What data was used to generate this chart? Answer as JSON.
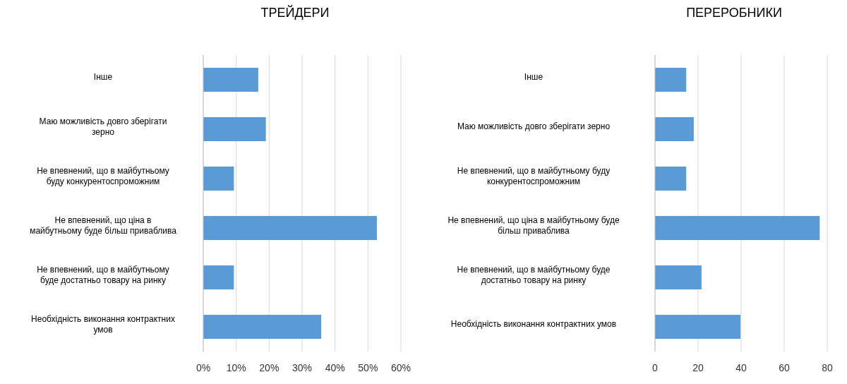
{
  "chart_data": [
    {
      "type": "bar",
      "orientation": "horizontal",
      "title": "ТРЕЙДЕРИ",
      "categories": [
        "Інше",
        "Маю можливість  довго зберігати зерно",
        "Не впевнений, що в майбутньому буду конкурентоспроможним",
        "Не впевнений, що ціна в майбутньому буде більш приваблива",
        "Не впевнений, що в майбутньому буде достатньо товару на ринку",
        "Необхідність виконання контрактних умов"
      ],
      "values": [
        16.7,
        19,
        9.3,
        52.7,
        9.3,
        35.8
      ],
      "color": "#5b9bd5",
      "xlim": [
        0,
        60
      ],
      "xticks": [
        {
          "value": 0,
          "label": "0%"
        },
        {
          "value": 10,
          "label": "10%"
        },
        {
          "value": 20,
          "label": "20%"
        },
        {
          "value": 30,
          "label": "30%"
        },
        {
          "value": 40,
          "label": "40%"
        },
        {
          "value": 50,
          "label": "50%"
        },
        {
          "value": 60,
          "label": "60%"
        }
      ],
      "grid": "x",
      "legend": false
    },
    {
      "type": "bar",
      "orientation": "horizontal",
      "title": "ПЕРЕРОБНИКИ",
      "categories": [
        "Інше",
        "Маю можливість  довго зберігати зерно",
        "Не впевнений, що в майбутньому буду конкурентоспроможним",
        "Не впевнений, що ціна в майбутньому буде більш приваблива",
        "Не впевнений, що в майбутньому буде достатньо товару на ринку",
        "Необхідність виконання контрактних умов"
      ],
      "values": [
        14.5,
        18,
        14.5,
        76.5,
        21.6,
        39.7
      ],
      "color": "#5b9bd5",
      "xlim": [
        0,
        80
      ],
      "xticks": [
        0,
        20,
        40,
        60,
        80
      ],
      "grid": "x",
      "legend": false
    }
  ]
}
